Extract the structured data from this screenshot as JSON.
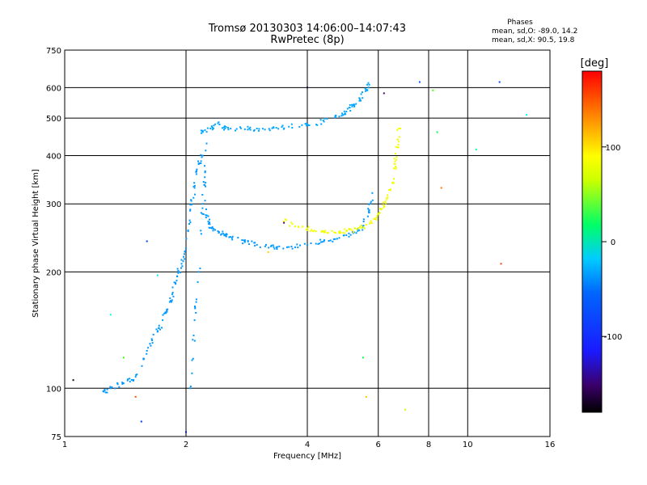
{
  "chart_data": {
    "type": "scatter",
    "title": "Tromsø 20130303 14:06:00–14:07:43",
    "subtitle": "RwPretec (8p)",
    "xlabel": "Frequency [MHz]",
    "ylabel": "Stationary phase Virtual Height [km]",
    "x_scale": "log",
    "y_scale": "log",
    "xlim": [
      1,
      16
    ],
    "ylim": [
      75,
      750
    ],
    "x_ticks": [
      1,
      2,
      4,
      6,
      8,
      10,
      16
    ],
    "y_ticks": [
      75,
      100,
      200,
      300,
      400,
      500,
      600,
      750
    ],
    "grid": true,
    "stats": {
      "heading": "Phases",
      "line_o": "mean, sd,O: -89.0, 14.2",
      "line_x": "mean, sd,X:  90.5, 19.8"
    },
    "colorbar": {
      "label": "[deg]",
      "min": -180,
      "max": 180,
      "ticks": [
        100,
        0,
        -100
      ],
      "tick_labels": [
        "100",
        "0",
        "-100"
      ]
    },
    "series": [
      {
        "name": "",
        "trace": "lower O-mode trace",
        "phase": -95,
        "x": [
          1.25,
          1.3,
          1.4,
          1.5,
          1.6,
          1.7,
          1.75,
          1.8,
          1.85,
          1.9,
          1.95,
          2.0,
          2.05,
          2.1,
          2.15,
          2.2,
          2.25,
          2.3,
          2.4,
          2.5,
          2.6,
          2.8,
          3.0,
          3.3,
          3.6,
          4.0,
          4.4,
          4.8,
          5.2,
          5.5,
          5.7,
          5.8
        ],
        "y": [
          98,
          100,
          103,
          107,
          125,
          140,
          150,
          160,
          175,
          195,
          210,
          230,
          290,
          330,
          380,
          400,
          280,
          260,
          255,
          250,
          245,
          240,
          235,
          232,
          232,
          235,
          240,
          245,
          252,
          262,
          285,
          320
        ]
      },
      {
        "name": "",
        "trace": "upper O-mode trace",
        "phase": -92,
        "x": [
          2.2,
          2.3,
          2.4,
          2.5,
          2.8,
          3.0,
          3.3,
          3.6,
          4.0,
          4.4,
          4.8,
          5.0,
          5.2,
          5.4,
          5.6,
          5.7
        ],
        "y": [
          460,
          470,
          485,
          470,
          468,
          470,
          472,
          475,
          480,
          490,
          505,
          520,
          540,
          560,
          590,
          610
        ]
      },
      {
        "name": "",
        "trace": "X-mode trace",
        "phase": 95,
        "x": [
          3.5,
          3.8,
          4.1,
          4.4,
          4.8,
          5.0,
          5.3,
          5.6,
          5.9,
          6.1,
          6.3,
          6.5,
          6.6,
          6.7,
          6.75
        ],
        "y": [
          270,
          262,
          257,
          253,
          252,
          255,
          258,
          265,
          275,
          290,
          310,
          340,
          380,
          420,
          470
        ]
      },
      {
        "name": "",
        "trace": "vertical streaks near 2.1-2.3 MHz",
        "phase": -95,
        "x": [
          2.05,
          2.1,
          2.15,
          2.2,
          2.25
        ],
        "y": [
          100,
          150,
          200,
          300,
          430
        ]
      },
      {
        "name": "",
        "trace": "scattered interference",
        "phase": 30,
        "x": [
          1.05,
          1.3,
          1.4,
          1.5,
          1.55,
          1.6,
          1.7,
          2.0,
          3.2,
          3.5,
          4.0,
          5.5,
          5.6,
          6.2,
          7.0,
          7.6,
          8.2,
          8.4,
          8.6,
          10.5,
          12.0,
          12.1,
          14.0
        ],
        "y": [
          105,
          155,
          120,
          95,
          82,
          240,
          196,
          77,
          225,
          268,
          600,
          120,
          95,
          580,
          88,
          620,
          590,
          460,
          330,
          415,
          620,
          210,
          510
        ]
      }
    ]
  }
}
